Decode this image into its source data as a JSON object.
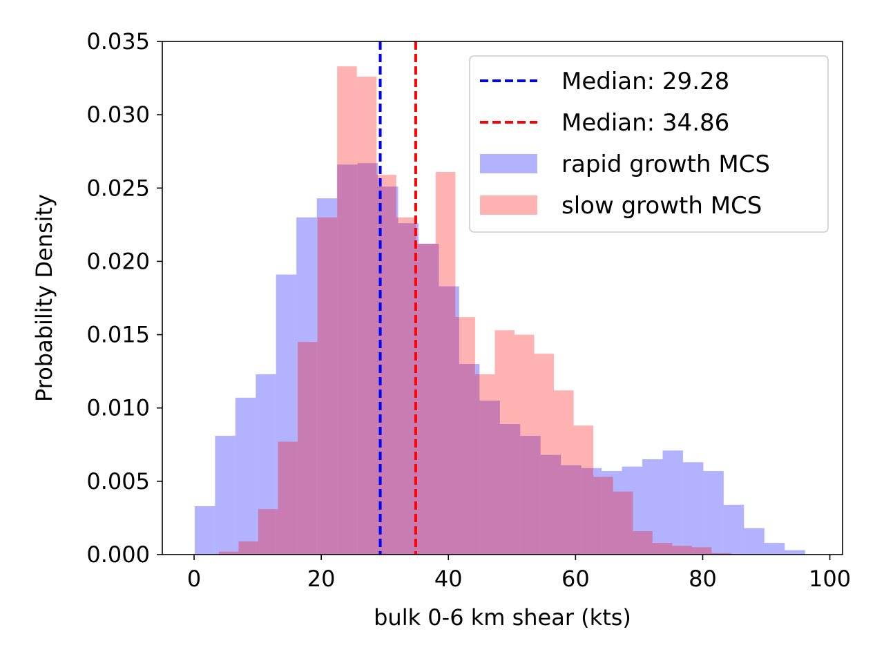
{
  "chart_data": {
    "type": "histogram",
    "title": "",
    "xlabel": "bulk 0-6 km shear (kts)",
    "ylabel": "Probability Density",
    "xlim": [
      -5,
      102
    ],
    "ylim": [
      0,
      0.035
    ],
    "xticks": [
      0,
      20,
      40,
      60,
      80,
      100
    ],
    "xtick_labels": [
      "0",
      "20",
      "40",
      "60",
      "80",
      "100"
    ],
    "yticks": [
      0,
      0.005,
      0.01,
      0.015,
      0.02,
      0.025,
      0.03,
      0.035
    ],
    "ytick_labels": [
      "0.000",
      "0.005",
      "0.010",
      "0.015",
      "0.020",
      "0.025",
      "0.030",
      "0.035"
    ],
    "grid": false,
    "legend_position": "upper right",
    "series": [
      {
        "name": "rapid growth MCS",
        "color": "#b2b2ff",
        "bin_edges": [
          0.1,
          3.3,
          6.5,
          9.7,
          12.9,
          16.1,
          19.3,
          22.5,
          25.7,
          28.9,
          32.1,
          35.3,
          38.5,
          41.7,
          44.9,
          48.1,
          51.3,
          54.5,
          57.7,
          60.9,
          64.1,
          67.3,
          70.5,
          73.7,
          76.9,
          80.1,
          83.3,
          86.5,
          89.7,
          92.9,
          96.1
        ],
        "values": [
          0.0033,
          0.0081,
          0.0107,
          0.0123,
          0.0191,
          0.023,
          0.0243,
          0.0266,
          0.0267,
          0.0251,
          0.0226,
          0.0212,
          0.0183,
          0.013,
          0.0105,
          0.0089,
          0.0081,
          0.0068,
          0.0061,
          0.0059,
          0.0057,
          0.006,
          0.0065,
          0.0071,
          0.0063,
          0.0057,
          0.0034,
          0.0018,
          0.0008,
          0.0003
        ]
      },
      {
        "name": "slow growth MCS",
        "color": "#ffb2b2",
        "bin_edges": [
          3.9,
          7.0,
          10.1,
          13.2,
          16.3,
          19.4,
          22.5,
          25.6,
          28.7,
          31.8,
          34.9,
          38.0,
          41.1,
          44.2,
          47.3,
          50.4,
          53.5,
          56.6,
          59.7,
          62.8,
          65.9,
          69.0,
          72.1,
          75.2,
          78.3,
          81.4,
          84.5
        ],
        "values": [
          0.0002,
          0.0009,
          0.0031,
          0.0077,
          0.0145,
          0.023,
          0.0333,
          0.0326,
          0.0259,
          0.023,
          0.0212,
          0.0261,
          0.0162,
          0.0123,
          0.0153,
          0.015,
          0.0137,
          0.0112,
          0.0088,
          0.0053,
          0.0043,
          0.0016,
          0.0008,
          0.0006,
          0.0005,
          0.0001
        ]
      }
    ],
    "median_lines": [
      {
        "label": "Median: 29.28",
        "value": 29.28,
        "color": "#0000ff",
        "style": "dashed"
      },
      {
        "label": "Median: 34.86",
        "value": 34.86,
        "color": "#ff0000",
        "style": "dashed"
      }
    ]
  }
}
